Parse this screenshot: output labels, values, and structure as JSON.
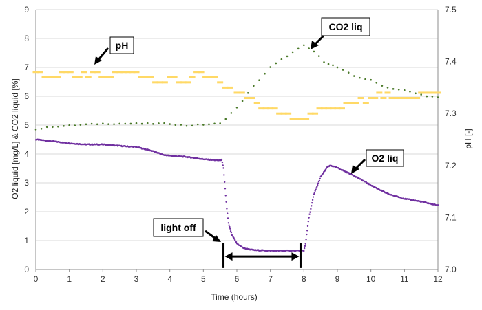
{
  "chart_data": {
    "type": "scatter",
    "title": "",
    "xlabel": "Time (hours)",
    "ylabel_left": "O2 liquid [mg/L] &  CO2 liquid [%]",
    "ylabel_right": "pH  [-]",
    "xlim": [
      0,
      12
    ],
    "ylim_left": [
      0,
      9
    ],
    "ylim_right": [
      7.0,
      7.5
    ],
    "x_ticks": [
      "0",
      "1",
      "2",
      "3",
      "4",
      "5",
      "6",
      "7",
      "8",
      "9",
      "10",
      "11",
      "12"
    ],
    "y_left_ticks": [
      "0",
      "1",
      "2",
      "3",
      "4",
      "5",
      "6",
      "7",
      "8",
      "9"
    ],
    "y_right_ticks": [
      "7.0",
      "7.1",
      "7.2",
      "7.3",
      "7.4",
      "7.5"
    ],
    "grid": "horizontal",
    "series": [
      {
        "name": "O2 liq",
        "axis": "left",
        "color": "#7030a0",
        "style": "dense-dots",
        "points": [
          [
            0,
            4.5
          ],
          [
            0.5,
            4.44
          ],
          [
            1,
            4.37
          ],
          [
            1.5,
            4.33
          ],
          [
            2,
            4.33
          ],
          [
            2.5,
            4.28
          ],
          [
            3,
            4.24
          ],
          [
            3.5,
            4.1
          ],
          [
            3.8,
            3.97
          ],
          [
            4,
            3.94
          ],
          [
            4.5,
            3.9
          ],
          [
            5,
            3.82
          ],
          [
            5.3,
            3.79
          ],
          [
            5.45,
            3.78
          ],
          [
            5.55,
            3.8
          ],
          [
            5.6,
            3.5
          ],
          [
            5.65,
            2.8
          ],
          [
            5.7,
            2.1
          ],
          [
            5.75,
            1.6
          ],
          [
            5.85,
            1.2
          ],
          [
            6,
            0.9
          ],
          [
            6.2,
            0.74
          ],
          [
            6.5,
            0.67
          ],
          [
            7,
            0.65
          ],
          [
            7.5,
            0.65
          ],
          [
            8,
            0.65
          ],
          [
            8.05,
            0.9
          ],
          [
            8.15,
            1.8
          ],
          [
            8.3,
            2.6
          ],
          [
            8.5,
            3.2
          ],
          [
            8.7,
            3.55
          ],
          [
            8.8,
            3.6
          ],
          [
            9,
            3.52
          ],
          [
            9.5,
            3.25
          ],
          [
            10,
            2.92
          ],
          [
            10.5,
            2.62
          ],
          [
            11,
            2.45
          ],
          [
            11.5,
            2.35
          ],
          [
            12,
            2.22
          ]
        ]
      },
      {
        "name": "CO2 liq",
        "axis": "left",
        "color": "#4b7a2a",
        "style": "sparse-dots",
        "points": [
          [
            0,
            4.85
          ],
          [
            0.5,
            4.95
          ],
          [
            1,
            4.98
          ],
          [
            1.5,
            5.02
          ],
          [
            2,
            5.05
          ],
          [
            3,
            5.05
          ],
          [
            4,
            5.05
          ],
          [
            4.5,
            4.98
          ],
          [
            5,
            5.02
          ],
          [
            5.5,
            5.05
          ],
          [
            6,
            5.6
          ],
          [
            6.5,
            6.35
          ],
          [
            7,
            7.0
          ],
          [
            7.5,
            7.4
          ],
          [
            8,
            7.75
          ],
          [
            8.3,
            7.55
          ],
          [
            8.6,
            7.2
          ],
          [
            9,
            7.0
          ],
          [
            9.5,
            6.7
          ],
          [
            10,
            6.55
          ],
          [
            10.5,
            6.3
          ],
          [
            11,
            6.2
          ],
          [
            11.5,
            6.05
          ],
          [
            12,
            5.95
          ]
        ]
      },
      {
        "name": "pH",
        "axis": "right",
        "color": "#ffd966",
        "style": "dashes",
        "points": [
          [
            0,
            7.38
          ],
          [
            0.4,
            7.37
          ],
          [
            0.9,
            7.38
          ],
          [
            1.3,
            7.37
          ],
          [
            1.7,
            7.38
          ],
          [
            2.1,
            7.37
          ],
          [
            2.5,
            7.38
          ],
          [
            3,
            7.38
          ],
          [
            3.3,
            7.37
          ],
          [
            3.7,
            7.36
          ],
          [
            4,
            7.37
          ],
          [
            4.4,
            7.36
          ],
          [
            4.8,
            7.38
          ],
          [
            5.2,
            7.37
          ],
          [
            5.5,
            7.36
          ],
          [
            5.8,
            7.35
          ],
          [
            6,
            7.34
          ],
          [
            6.3,
            7.33
          ],
          [
            6.6,
            7.32
          ],
          [
            7,
            7.31
          ],
          [
            7.4,
            7.3
          ],
          [
            7.8,
            7.29
          ],
          [
            8.2,
            7.3
          ],
          [
            8.6,
            7.31
          ],
          [
            9,
            7.31
          ],
          [
            9.4,
            7.32
          ],
          [
            10,
            7.33
          ],
          [
            10.5,
            7.34
          ],
          [
            11,
            7.33
          ],
          [
            11.5,
            7.34
          ],
          [
            12,
            7.34
          ]
        ]
      }
    ],
    "annotations": [
      {
        "label": "pH",
        "target": "pH series"
      },
      {
        "label": "CO2 liq",
        "target": "CO2 liq series"
      },
      {
        "label": "O2 liq",
        "target": "O2 liq series"
      },
      {
        "label": "light off",
        "target": "light-off interval 5.6–7.9 h"
      }
    ],
    "light_off": {
      "start": 5.6,
      "end": 7.9
    }
  },
  "colors": {
    "o2": "#7030a0",
    "co2": "#4b7a2a",
    "ph": "#ffd966",
    "grid": "#d9d9d9"
  }
}
